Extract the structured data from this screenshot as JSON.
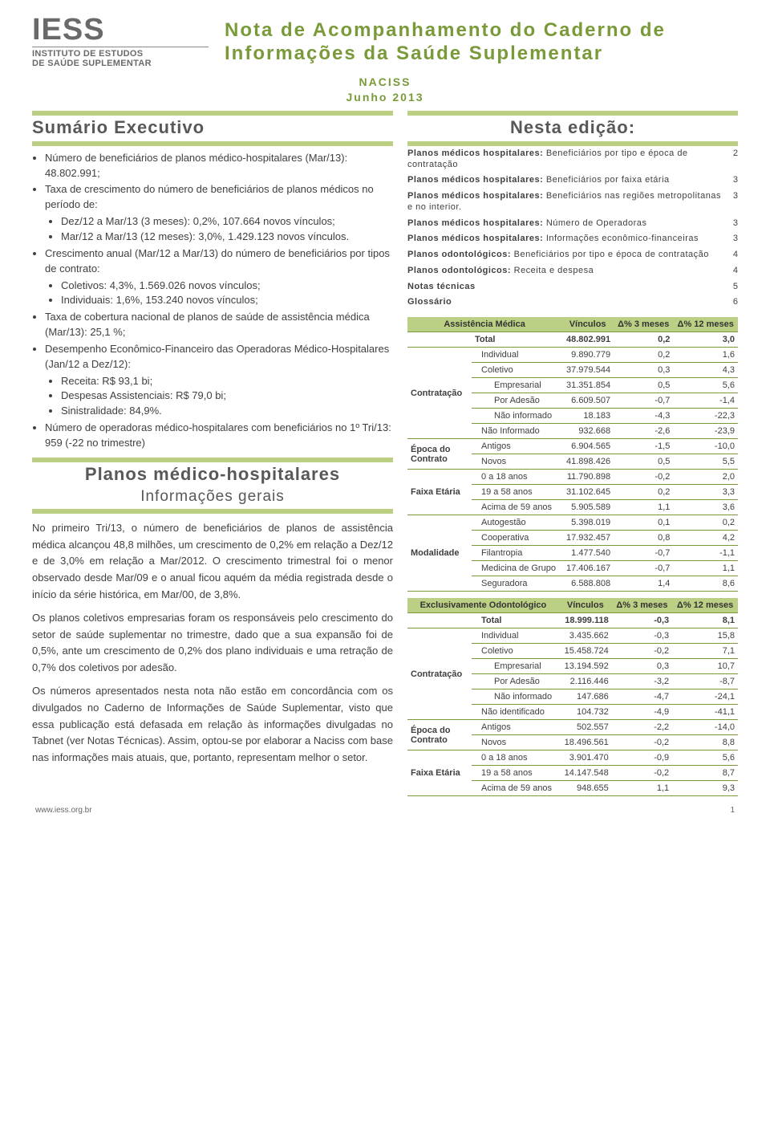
{
  "colors": {
    "accent": "#7a9a3a",
    "band": "#bcd085",
    "text": "#404040",
    "logo_gray": "#6a6a6a"
  },
  "logo": {
    "acronym": "IESS",
    "inst_line1": "INSTITUTO DE ESTUDOS",
    "inst_line2": "DE SAÚDE SUPLEMENTAR"
  },
  "title_line": "Nota de Acompanhamento do Caderno de Informações da Saúde Suplementar",
  "subtitle1": "NACISS",
  "subtitle2": "Junho 2013",
  "left": {
    "exec_head": "Sumário Executivo",
    "bullets": [
      "Número de beneficiários de planos médico-hospitalares (Mar/13): 48.802.991;",
      "Taxa de crescimento do número de beneficiários de planos médicos no período de:",
      "Crescimento anual (Mar/12 a Mar/13) do número de beneficiários por tipos de contrato:",
      "Taxa de cobertura nacional de planos de saúde de assistência médica (Mar/13): 25,1 %;",
      "Desempenho Econômico-Financeiro das Operadoras Médico-Hospitalares (Jan/12 a Dez/12):",
      "Número de operadoras médico-hospitalares com beneficiários no 1º Tri/13: 959 (-22 no trimestre)"
    ],
    "sub1": [
      "Dez/12 a Mar/13 (3 meses): 0,2%, 107.664 novos vínculos;",
      "Mar/12 a Mar/13 (12 meses): 3,0%, 1.429.123 novos vínculos."
    ],
    "sub2": [
      "Coletivos: 4,3%, 1.569.026 novos vínculos;",
      "Individuais: 1,6%, 153.240 novos vínculos;"
    ],
    "sub3": [
      "Receita: R$ 93,1 bi;",
      "Despesas Assistenciais: R$ 79,0 bi;",
      "Sinistralidade: 84,9%."
    ],
    "section2_head": "Planos médico-hospitalares",
    "section2_sub": "Informações gerais",
    "paras": [
      "No primeiro Tri/13, o número de beneficiários de planos de assistência médica alcançou 48,8 milhões, um crescimento de 0,2% em relação a Dez/12 e de 3,0% em relação a Mar/2012. O crescimento trimestral foi o menor observado desde Mar/09 e o anual ficou aquém da média registrada desde o início da série histórica, em Mar/00, de 3,8%.",
      "Os planos coletivos empresarias foram os responsáveis pelo crescimento do setor de saúde suplementar no trimestre, dado que a sua expansão foi de 0,5%, ante um crescimento de 0,2% dos plano individuais e uma retração de 0,7% dos coletivos por adesão.",
      "Os números apresentados nesta nota não estão em concordância com os divulgados no Caderno de Informações de Saúde Suplementar, visto que essa publicação está defasada em relação às informações divulgadas no Tabnet (ver Notas Técnicas). Assim, optou-se por elaborar a Naciss com base nas informações mais atuais, que, portanto, representam melhor o setor."
    ]
  },
  "right": {
    "nesta_head": "Nesta edição:",
    "toc": [
      {
        "label_bold": "Planos médicos hospitalares:",
        "label_rest": " Beneficiários por tipo e época de contratação",
        "page": "2"
      },
      {
        "label_bold": "Planos médicos hospitalares:",
        "label_rest": " Beneficiários por faixa etária",
        "page": "3"
      },
      {
        "label_bold": "Planos médicos hospitalares:",
        "label_rest": " Beneficiários nas regiões metropolitanas e no interior.",
        "page": "3"
      },
      {
        "label_bold": "Planos médicos hospitalares:",
        "label_rest": " Número de Operadoras",
        "page": "3"
      },
      {
        "label_bold": "Planos médicos hospitalares:",
        "label_rest": " Informações econômico-financeiras",
        "page": "3"
      },
      {
        "label_bold": "Planos odontológicos:",
        "label_rest": " Beneficiários por tipo e época de contratação",
        "page": "4"
      },
      {
        "label_bold": "Planos odontológicos:",
        "label_rest": " Receita e despesa",
        "page": "4"
      },
      {
        "label_bold": "Notas técnicas",
        "label_rest": "",
        "page": "5"
      },
      {
        "label_bold": "Glossário",
        "label_rest": "",
        "page": "6"
      }
    ]
  },
  "table1": {
    "head": [
      "Assistência Médica",
      "Vínculos",
      "Δ% 3 meses",
      "Δ% 12 meses"
    ],
    "rows": [
      {
        "g": "",
        "cat": "Total",
        "ind": 0,
        "v": "48.802.991",
        "d3": "0,2",
        "d12": "3,0",
        "total": true
      },
      {
        "g": "Contratação",
        "cat": "Individual",
        "ind": 1,
        "v": "9.890.779",
        "d3": "0,2",
        "d12": "1,6"
      },
      {
        "g": "",
        "cat": "Coletivo",
        "ind": 1,
        "v": "37.979.544",
        "d3": "0,3",
        "d12": "4,3"
      },
      {
        "g": "",
        "cat": "Empresarial",
        "ind": 2,
        "v": "31.351.854",
        "d3": "0,5",
        "d12": "5,6"
      },
      {
        "g": "",
        "cat": "Por Adesão",
        "ind": 2,
        "v": "6.609.507",
        "d3": "-0,7",
        "d12": "-1,4"
      },
      {
        "g": "",
        "cat": "Não informado",
        "ind": 2,
        "v": "18.183",
        "d3": "-4,3",
        "d12": "-22,3"
      },
      {
        "g": "",
        "cat": "Não Informado",
        "ind": 1,
        "v": "932.668",
        "d3": "-2,6",
        "d12": "-23,9"
      },
      {
        "g": "Época do Contrato",
        "cat": "Antigos",
        "ind": 1,
        "v": "6.904.565",
        "d3": "-1,5",
        "d12": "-10,0"
      },
      {
        "g": "",
        "cat": "Novos",
        "ind": 1,
        "v": "41.898.426",
        "d3": "0,5",
        "d12": "5,5"
      },
      {
        "g": "Faixa Etária",
        "cat": "0 a 18 anos",
        "ind": 1,
        "v": "11.790.898",
        "d3": "-0,2",
        "d12": "2,0"
      },
      {
        "g": "",
        "cat": "19 a 58 anos",
        "ind": 1,
        "v": "31.102.645",
        "d3": "0,2",
        "d12": "3,3"
      },
      {
        "g": "",
        "cat": "Acima de 59 anos",
        "ind": 1,
        "v": "5.905.589",
        "d3": "1,1",
        "d12": "3,6"
      },
      {
        "g": "Modalidade",
        "cat": "Autogestão",
        "ind": 1,
        "v": "5.398.019",
        "d3": "0,1",
        "d12": "0,2"
      },
      {
        "g": "",
        "cat": "Cooperativa",
        "ind": 1,
        "v": "17.932.457",
        "d3": "0,8",
        "d12": "4,2"
      },
      {
        "g": "",
        "cat": "Filantropia",
        "ind": 1,
        "v": "1.477.540",
        "d3": "-0,7",
        "d12": "-1,1"
      },
      {
        "g": "",
        "cat": "Medicina de Grupo",
        "ind": 1,
        "v": "17.406.167",
        "d3": "-0,7",
        "d12": "1,1"
      },
      {
        "g": "",
        "cat": "Seguradora",
        "ind": 1,
        "v": "6.588.808",
        "d3": "1,4",
        "d12": "8,6"
      }
    ]
  },
  "table2": {
    "head": [
      "Exclusivamente Odontológico",
      "Vínculos",
      "Δ% 3 meses",
      "Δ% 12 meses"
    ],
    "rows": [
      {
        "g": "",
        "cat": "Total",
        "ind": 1,
        "v": "18.999.118",
        "d3": "-0,3",
        "d12": "8,1",
        "total": true
      },
      {
        "g": "Contratação",
        "cat": "Individual",
        "ind": 1,
        "v": "3.435.662",
        "d3": "-0,3",
        "d12": "15,8"
      },
      {
        "g": "",
        "cat": "Coletivo",
        "ind": 1,
        "v": "15.458.724",
        "d3": "-0,2",
        "d12": "7,1"
      },
      {
        "g": "",
        "cat": "Empresarial",
        "ind": 2,
        "v": "13.194.592",
        "d3": "0,3",
        "d12": "10,7"
      },
      {
        "g": "",
        "cat": "Por Adesão",
        "ind": 2,
        "v": "2.116.446",
        "d3": "-3,2",
        "d12": "-8,7"
      },
      {
        "g": "",
        "cat": "Não informado",
        "ind": 2,
        "v": "147.686",
        "d3": "-4,7",
        "d12": "-24,1"
      },
      {
        "g": "",
        "cat": "Não identificado",
        "ind": 1,
        "v": "104.732",
        "d3": "-4,9",
        "d12": "-41,1"
      },
      {
        "g": "Época do Contrato",
        "cat": "Antigos",
        "ind": 1,
        "v": "502.557",
        "d3": "-2,2",
        "d12": "-14,0"
      },
      {
        "g": "",
        "cat": "Novos",
        "ind": 1,
        "v": "18.496.561",
        "d3": "-0,2",
        "d12": "8,8"
      },
      {
        "g": "Faixa Etária",
        "cat": "0 a 18 anos",
        "ind": 1,
        "v": "3.901.470",
        "d3": "-0,9",
        "d12": "5,6"
      },
      {
        "g": "",
        "cat": "19 a 58 anos",
        "ind": 1,
        "v": "14.147.548",
        "d3": "-0,2",
        "d12": "8,7"
      },
      {
        "g": "",
        "cat": "Acima de 59 anos",
        "ind": 1,
        "v": "948.655",
        "d3": "1,1",
        "d12": "9,3"
      }
    ]
  },
  "footer": {
    "url": "www.iess.org.br",
    "page": "1"
  }
}
